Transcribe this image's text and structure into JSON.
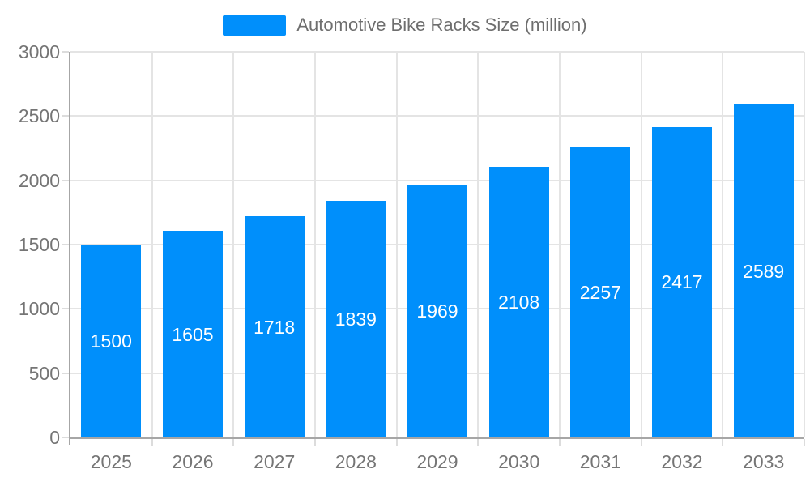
{
  "chart_data": {
    "type": "bar",
    "title": "Automotive Bike Racks Size (million)",
    "series": [
      {
        "name": "Automotive Bike Racks Size (million)",
        "values": [
          1500,
          1605,
          1718,
          1839,
          1969,
          2108,
          2257,
          2417,
          2589
        ]
      }
    ],
    "categories": [
      "2025",
      "2026",
      "2027",
      "2028",
      "2029",
      "2030",
      "2031",
      "2032",
      "2033"
    ],
    "xlabel": "",
    "ylabel": "",
    "ylim": [
      0,
      3000
    ],
    "yticks": [
      0,
      500,
      1000,
      1500,
      2000,
      2500,
      3000
    ],
    "grid": true,
    "legend_position": "top",
    "data_labels": "inside-center"
  },
  "colors": {
    "bar": "#008FFB",
    "bar_label_text": "#ffffff",
    "axis_line": "#a6a6a6",
    "gridline": "#e4e4e4",
    "tick": "#dcdcdc",
    "axis_label_text": "#757575",
    "legend_text": "#6e6e6e",
    "background": "#ffffff"
  }
}
